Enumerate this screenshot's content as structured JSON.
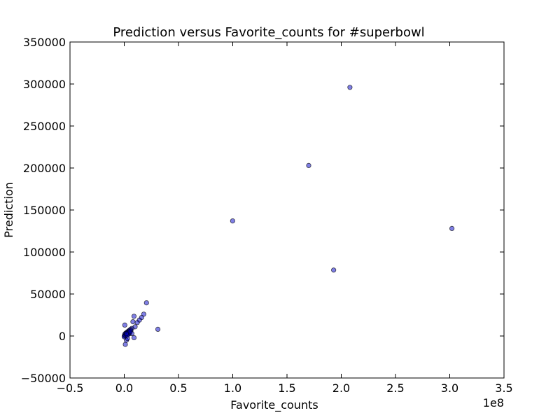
{
  "chart_data": {
    "type": "scatter",
    "title": "Prediction versus  Favorite_counts  for  #superbowl",
    "xlabel": "Favorite_counts",
    "ylabel": "Prediction",
    "x_offset_label": "1e8",
    "xlim": [
      -0.5,
      3.5
    ],
    "ylim": [
      -50000,
      350000
    ],
    "xticks": [
      -0.5,
      0.0,
      0.5,
      1.0,
      1.5,
      2.0,
      2.5,
      3.0,
      3.5
    ],
    "xtick_labels": [
      "−0.5",
      "0.0",
      "0.5",
      "1.0",
      "1.5",
      "2.0",
      "2.5",
      "3.0",
      "3.5"
    ],
    "yticks": [
      -50000,
      0,
      50000,
      100000,
      150000,
      200000,
      250000,
      300000,
      350000
    ],
    "ytick_labels": [
      "−50000",
      "0",
      "50000",
      "100000",
      "150000",
      "200000",
      "250000",
      "300000",
      "350000"
    ],
    "grid": false,
    "marker_color": "#0000cc",
    "marker_alpha": 0.5,
    "x": [
      2.08,
      1.7,
      0.999,
      3.02,
      1.93,
      0.205,
      0.31,
      0.18,
      0.16,
      0.14,
      0.12,
      0.09,
      0.08,
      0.1,
      0.07,
      0.06,
      0.05,
      0.04,
      0.03,
      0.02,
      0.01,
      0.005,
      0.0,
      0.01,
      0.02,
      0.03,
      0.04,
      0.05,
      0.06,
      0.07,
      0.09,
      0.005,
      0.01,
      0.02,
      0.03,
      0.0,
      0.01,
      0.02,
      0.04,
      0.05,
      0.03,
      0.02
    ],
    "y": [
      296000,
      203000,
      137000,
      128000,
      78500,
      39500,
      8000,
      26000,
      22000,
      19000,
      16000,
      23500,
      17000,
      11000,
      9000,
      8000,
      7000,
      6000,
      5000,
      4000,
      3000,
      2000,
      0,
      1000,
      2000,
      3500,
      4500,
      3000,
      6000,
      3000,
      -2000,
      13000,
      -10000,
      -5000,
      -3000,
      -1000,
      500,
      1500,
      2500,
      5000,
      1000,
      3000
    ]
  }
}
